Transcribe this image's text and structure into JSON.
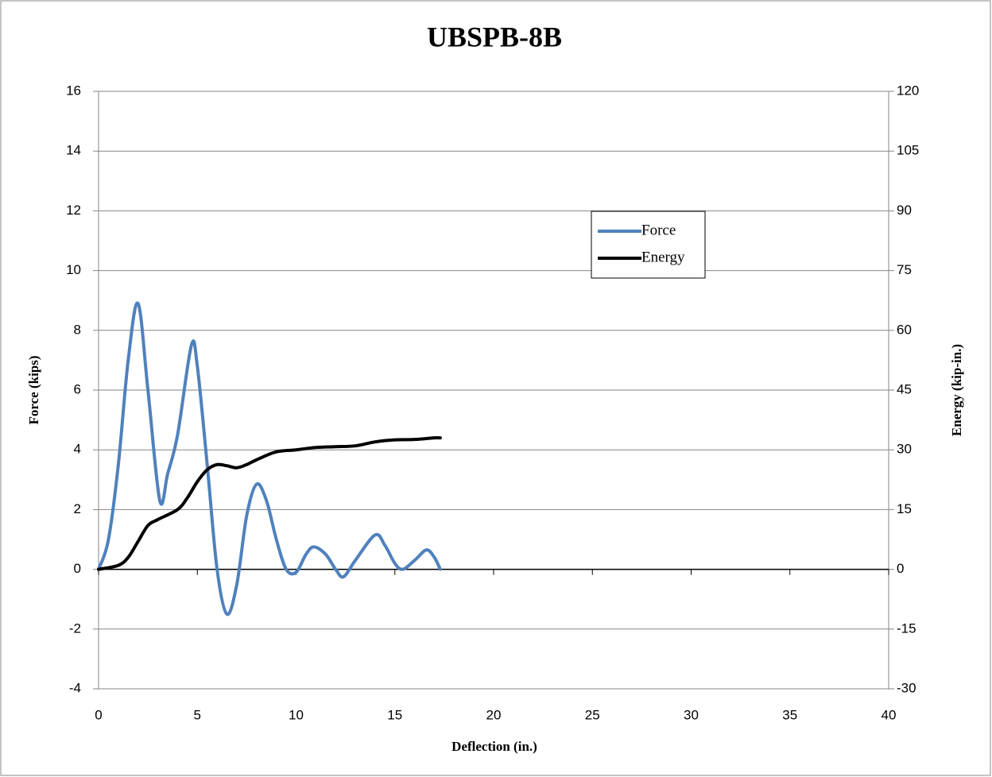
{
  "chart_data": {
    "type": "line",
    "title": "UBSPB-8B",
    "x_label": "Deflection (in.)",
    "y_label": "Force (kips)",
    "y2_label": "Energy (kip-in.)",
    "xlim": [
      0,
      40
    ],
    "xticks": [
      0,
      5,
      10,
      15,
      20,
      25,
      30,
      35,
      40
    ],
    "ylim": [
      -4,
      16
    ],
    "yticks": [
      -4,
      -2,
      0,
      2,
      4,
      6,
      8,
      10,
      12,
      14,
      16
    ],
    "y2lim": [
      -30,
      120
    ],
    "y2ticks": [
      -30,
      -15,
      0,
      15,
      30,
      45,
      60,
      75,
      90,
      105,
      120
    ],
    "grid": true,
    "legend": "right",
    "series": [
      {
        "name": "Force",
        "color": "#4f81bd",
        "x": [
          0,
          0.5,
          1,
          1.5,
          2,
          2.5,
          3.1,
          3.5,
          4,
          4.7,
          5,
          5.5,
          6,
          6.5,
          7,
          7.5,
          8,
          8.5,
          9,
          9.5,
          10,
          10.5,
          10.9,
          11.5,
          12,
          12.4,
          13,
          14,
          14.5,
          15,
          15.4,
          16,
          16.6,
          17,
          17.3
        ],
        "values": [
          0,
          1,
          3.5,
          7,
          8.9,
          6,
          2.3,
          3.2,
          4.5,
          7.5,
          6.8,
          3.5,
          0,
          -1.5,
          -0.5,
          1.8,
          2.85,
          2.3,
          1,
          0,
          -0.1,
          0.5,
          0.75,
          0.5,
          0,
          -0.25,
          0.3,
          1.15,
          0.8,
          0.2,
          0,
          0.3,
          0.65,
          0.4,
          0
        ]
      },
      {
        "name": "Energy",
        "color": "#000000",
        "axis": "y2",
        "x": [
          0,
          1,
          1.5,
          2,
          2.5,
          3,
          4,
          4.5,
          5,
          5.5,
          6,
          6.5,
          7,
          7.5,
          8,
          9,
          10,
          11,
          12,
          13,
          14,
          15,
          16,
          17,
          17.3
        ],
        "values": [
          0,
          1,
          3,
          7,
          11,
          12.5,
          15,
          18,
          22,
          25,
          26.3,
          26,
          25.5,
          26.3,
          27.5,
          29.5,
          30,
          30.6,
          30.8,
          31,
          32,
          32.5,
          32.6,
          33,
          33
        ]
      }
    ]
  }
}
